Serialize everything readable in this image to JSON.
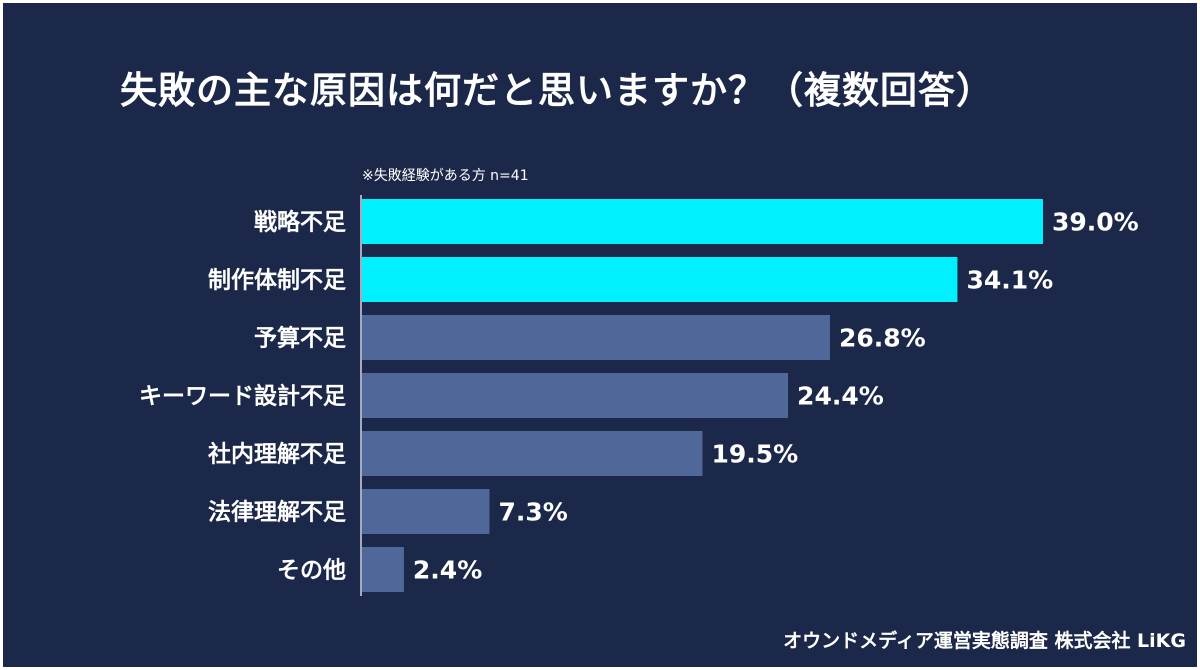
{
  "title": "失敗の主な原因は何だと思いますか？（複数回答）",
  "note": "※失敗経験がある方 n=41",
  "source": "オウンドメディア運営実態調査  株式会社 LiKG",
  "colors": {
    "background": "#1c284a",
    "highlight": "#00f0ff",
    "bar": "#4f6899",
    "text": "#ffffff"
  },
  "chart_data": {
    "type": "bar",
    "orientation": "horizontal",
    "categories": [
      "戦略不足",
      "制作体制不足",
      "予算不足",
      "キーワード設計不足",
      "社内理解不足",
      "法律理解不足",
      "その他"
    ],
    "values": [
      39.0,
      34.1,
      26.8,
      24.4,
      19.5,
      7.3,
      2.4
    ],
    "value_labels": [
      "39.0%",
      "34.1%",
      "26.8%",
      "24.4%",
      "19.5%",
      "7.3%",
      "2.4%"
    ],
    "highlighted": [
      true,
      true,
      false,
      false,
      false,
      false,
      false
    ],
    "unit": "%",
    "grid": false,
    "legend": "none"
  }
}
